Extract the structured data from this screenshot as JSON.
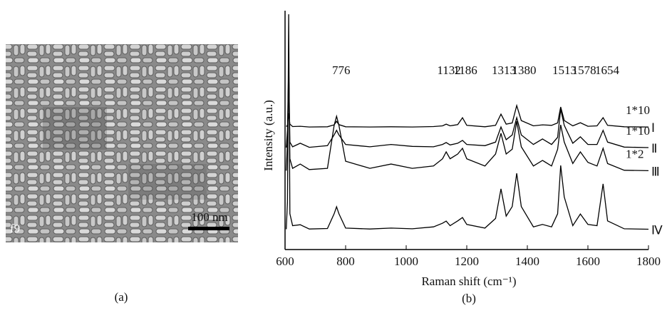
{
  "panel_a": {
    "label": "f9",
    "scale_bar": "100 nm",
    "caption": "(a)"
  },
  "chart_data": {
    "type": "line",
    "caption": "(b)",
    "x_label": "Raman shift (cm⁻¹)",
    "y_label": "Intensity (a.u.)",
    "xlim": [
      600,
      1800
    ],
    "xticks": [
      600,
      800,
      1000,
      1200,
      1400,
      1600,
      1800
    ],
    "ylim": [
      0,
      100
    ],
    "peak_labels": [
      776,
      1132,
      1186,
      1313,
      1380,
      1513,
      1578,
      1654
    ],
    "x": [
      604,
      608,
      612,
      616,
      625,
      650,
      680,
      740,
      762,
      770,
      778,
      800,
      880,
      950,
      1020,
      1090,
      1120,
      1132,
      1145,
      1170,
      1186,
      1200,
      1260,
      1295,
      1313,
      1330,
      1350,
      1365,
      1380,
      1420,
      1450,
      1480,
      1500,
      1510,
      1522,
      1550,
      1575,
      1600,
      1630,
      1650,
      1665,
      1720,
      1800
    ],
    "series": [
      {
        "name": "Ⅰ",
        "factor": "1*10",
        "color": "#000000",
        "values": [
          51.5,
          52,
          57,
          52.5,
          51.5,
          51.6,
          51.3,
          51.4,
          52.2,
          53.7,
          52.3,
          51.4,
          51.3,
          51.4,
          51.3,
          51.5,
          51.8,
          52.5,
          51.8,
          52.3,
          55.2,
          52,
          51.4,
          52,
          56.7,
          52.5,
          53,
          60.3,
          54,
          51.8,
          52.2,
          52,
          53,
          59.7,
          54,
          51.8,
          53.1,
          51.6,
          51.8,
          55.2,
          52,
          51.4,
          51.3
        ]
      },
      {
        "name": "Ⅱ",
        "factor": "1*10",
        "color": "#000000",
        "values": [
          42.7,
          50,
          77.6,
          45,
          43,
          44.5,
          42.8,
          43.5,
          48,
          49.9,
          48,
          44,
          43,
          44,
          43.2,
          43,
          44,
          44.8,
          43.8,
          44.5,
          45.7,
          44,
          43.5,
          45,
          51.3,
          46,
          48,
          55.2,
          48,
          44,
          46.3,
          44,
          47,
          58.8,
          52,
          44.5,
          47.2,
          44,
          44,
          49.9,
          45,
          42.9,
          42.7
        ]
      },
      {
        "name": "Ⅲ",
        "factor": "1*2",
        "color": "#000000",
        "values": [
          33,
          45,
          76,
          38,
          34,
          35.8,
          33.5,
          34,
          52,
          55.8,
          52,
          37,
          34,
          35.8,
          34,
          35,
          38,
          40.9,
          38,
          40,
          42.4,
          38,
          35,
          40,
          48.7,
          40,
          42,
          53.7,
          43,
          35,
          37.3,
          35,
          42,
          52.2,
          45,
          36,
          40.9,
          36.5,
          35,
          42.4,
          36,
          33.2,
          33
        ]
      },
      {
        "name": "Ⅳ",
        "color": "#000000",
        "values": [
          8.5,
          20,
          98.5,
          15,
          10,
          10.4,
          8.6,
          8.8,
          15,
          17.9,
          15,
          9,
          8.6,
          9,
          8.7,
          9.5,
          11,
          11.9,
          10,
          12,
          13.4,
          10.5,
          9,
          13,
          25.4,
          14,
          18,
          31.9,
          18,
          9.5,
          10.5,
          9.5,
          15,
          35.2,
          22,
          10,
          14.9,
          10.5,
          10,
          27.5,
          12,
          8.7,
          8.5
        ]
      }
    ]
  }
}
